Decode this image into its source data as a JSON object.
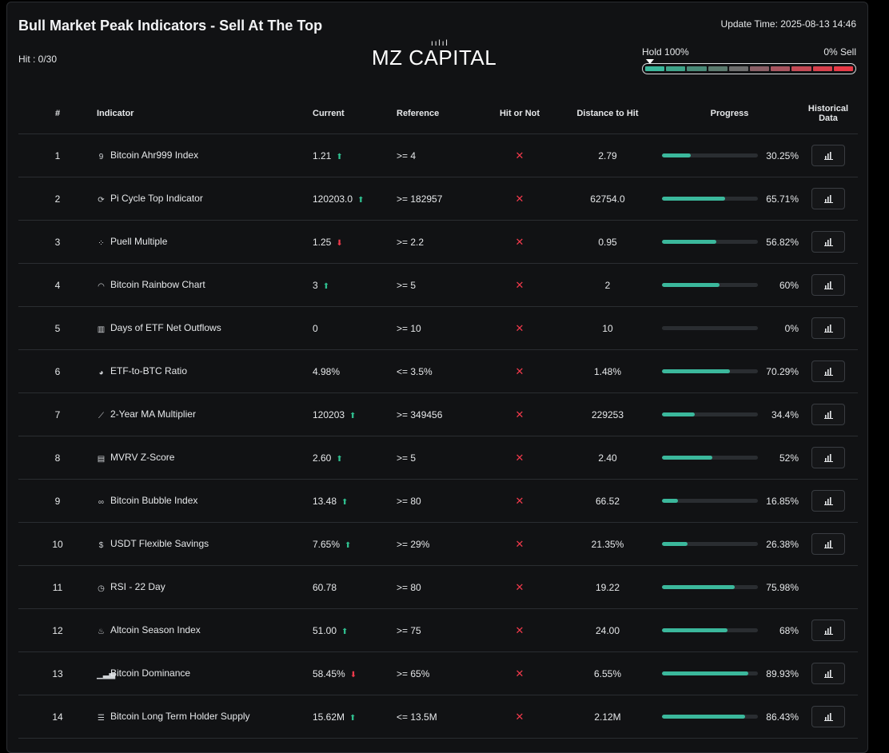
{
  "header": {
    "title": "Bull Market Peak Indicators - Sell At The Top",
    "hit_label": "Hit : 0/30",
    "brand": "MZ CAPITAL",
    "brand_mark": "ıılıl",
    "update_time": "Update Time: 2025-08-13 14:46",
    "hold_label": "Hold 100%",
    "sell_label": "0% Sell",
    "meter_colors": [
      "#3bb89c",
      "#3fa389",
      "#4a8a78",
      "#5b7a6e",
      "#6e6e6e",
      "#8a5f66",
      "#a85560",
      "#c44a55",
      "#d8414d",
      "#e83a47"
    ]
  },
  "table": {
    "columns": [
      "#",
      "Indicator",
      "Current",
      "Reference",
      "Hit or Not",
      "Distance to Hit",
      "Progress",
      "Historical Data"
    ],
    "rows": [
      {
        "num": "1",
        "icon": "number-nine-icon",
        "glyph": "9",
        "name": "Bitcoin Ahr999 Index",
        "current": "1.21",
        "trend": "up",
        "reference": ">= 4",
        "distance": "2.79",
        "progress": 30.25,
        "progress_label": "30.25%",
        "has_history": true
      },
      {
        "num": "2",
        "icon": "cycle-icon",
        "glyph": "⟳",
        "name": "Pi Cycle Top Indicator",
        "current": "120203.0",
        "trend": "up",
        "reference": ">= 182957",
        "distance": "62754.0",
        "progress": 65.71,
        "progress_label": "65.71%",
        "has_history": true
      },
      {
        "num": "3",
        "icon": "scatter-icon",
        "glyph": "⁘",
        "name": "Puell Multiple",
        "current": "1.25",
        "trend": "down",
        "reference": ">= 2.2",
        "distance": "0.95",
        "progress": 56.82,
        "progress_label": "56.82%",
        "has_history": true
      },
      {
        "num": "4",
        "icon": "rainbow-icon",
        "glyph": "◠",
        "name": "Bitcoin Rainbow Chart",
        "current": "3",
        "trend": "up",
        "reference": ">= 5",
        "distance": "2",
        "progress": 60,
        "progress_label": "60%",
        "has_history": true
      },
      {
        "num": "5",
        "icon": "bar-chart-icon",
        "glyph": "▥",
        "name": "Days of ETF Net Outflows",
        "current": "0",
        "trend": "",
        "reference": ">= 10",
        "distance": "10",
        "progress": 0,
        "progress_label": "0%",
        "has_history": true
      },
      {
        "num": "6",
        "icon": "pie-chart-icon",
        "glyph": "◕",
        "name": "ETF-to-BTC Ratio",
        "current": "4.98%",
        "trend": "",
        "reference": "<= 3.5%",
        "distance": "1.48%",
        "progress": 70.29,
        "progress_label": "70.29%",
        "has_history": true
      },
      {
        "num": "7",
        "icon": "line-chart-icon",
        "glyph": "⟋",
        "name": "2-Year MA Multiplier",
        "current": "120203",
        "trend": "up",
        "reference": ">= 349456",
        "distance": "229253",
        "progress": 34.4,
        "progress_label": "34.4%",
        "has_history": true
      },
      {
        "num": "8",
        "icon": "clipboard-icon",
        "glyph": "▤",
        "name": "MVRV Z-Score",
        "current": "2.60",
        "trend": "up",
        "reference": ">= 5",
        "distance": "2.40",
        "progress": 52,
        "progress_label": "52%",
        "has_history": true
      },
      {
        "num": "9",
        "icon": "bubble-icon",
        "glyph": "∞",
        "name": "Bitcoin Bubble Index",
        "current": "13.48",
        "trend": "up",
        "reference": ">= 80",
        "distance": "66.52",
        "progress": 16.85,
        "progress_label": "16.85%",
        "has_history": true
      },
      {
        "num": "10",
        "icon": "dollar-icon",
        "glyph": "$",
        "name": "USDT Flexible Savings",
        "current": "7.65%",
        "trend": "up",
        "reference": ">= 29%",
        "distance": "21.35%",
        "progress": 26.38,
        "progress_label": "26.38%",
        "has_history": true
      },
      {
        "num": "11",
        "icon": "clock-icon",
        "glyph": "◷",
        "name": "RSI - 22 Day",
        "current": "60.78",
        "trend": "",
        "reference": ">= 80",
        "distance": "19.22",
        "progress": 75.98,
        "progress_label": "75.98%",
        "has_history": false
      },
      {
        "num": "12",
        "icon": "flame-icon",
        "glyph": "♨",
        "name": "Altcoin Season Index",
        "current": "51.00",
        "trend": "up",
        "reference": ">= 75",
        "distance": "24.00",
        "progress": 68,
        "progress_label": "68%",
        "has_history": true
      },
      {
        "num": "13",
        "icon": "signal-icon",
        "glyph": "▁▃▅",
        "name": "Bitcoin Dominance",
        "current": "58.45%",
        "trend": "down",
        "reference": ">= 65%",
        "distance": "6.55%",
        "progress": 89.93,
        "progress_label": "89.93%",
        "has_history": true
      },
      {
        "num": "14",
        "icon": "database-icon",
        "glyph": "☰",
        "name": "Bitcoin Long Term Holder Supply",
        "current": "15.62M",
        "trend": "up",
        "reference": "<= 13.5M",
        "distance": "2.12M",
        "progress": 86.43,
        "progress_label": "86.43%",
        "has_history": true
      }
    ],
    "hit_symbol": "✕",
    "trend_up_symbol": "⬆",
    "trend_down_symbol": "⬇"
  },
  "colors": {
    "accent": "#3bb89c",
    "up": "#2fbf8f",
    "down": "#f0394b",
    "panel": "#111214"
  }
}
